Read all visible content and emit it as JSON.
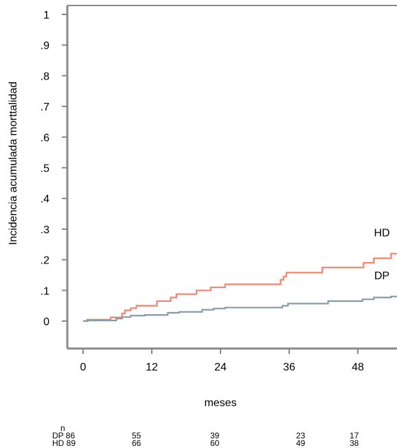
{
  "chart_data": {
    "type": "line",
    "xlabel": "meses",
    "ylabel": "Incidencia acumulada morttalidad",
    "xlim": [
      0,
      55
    ],
    "ylim": [
      0,
      1
    ],
    "x_ticks": [
      "0",
      "12",
      "24",
      "36",
      "48"
    ],
    "y_ticks": [
      "0",
      ".1",
      ".2",
      ".3",
      ".4",
      ".5",
      ".6",
      ".7",
      ".8",
      ".9",
      "1"
    ],
    "series": [
      {
        "name": "HD",
        "color": "#f4826f",
        "points": [
          [
            0,
            0
          ],
          [
            0.7,
            0
          ],
          [
            0.7,
            0.005
          ],
          [
            4.8,
            0.005
          ],
          [
            4.8,
            0.012
          ],
          [
            6.8,
            0.012
          ],
          [
            6.8,
            0.025
          ],
          [
            7.3,
            0.025
          ],
          [
            7.3,
            0.035
          ],
          [
            8.3,
            0.035
          ],
          [
            8.3,
            0.042
          ],
          [
            9.3,
            0.042
          ],
          [
            9.3,
            0.05
          ],
          [
            12.9,
            0.05
          ],
          [
            12.9,
            0.065
          ],
          [
            15.3,
            0.065
          ],
          [
            15.3,
            0.077
          ],
          [
            16.3,
            0.077
          ],
          [
            16.3,
            0.088
          ],
          [
            19.8,
            0.088
          ],
          [
            19.8,
            0.1
          ],
          [
            22.3,
            0.1
          ],
          [
            22.3,
            0.11
          ],
          [
            24.8,
            0.11
          ],
          [
            24.8,
            0.12
          ],
          [
            34.5,
            0.12
          ],
          [
            34.5,
            0.135
          ],
          [
            35.0,
            0.135
          ],
          [
            35.0,
            0.145
          ],
          [
            35.5,
            0.145
          ],
          [
            35.5,
            0.158
          ],
          [
            41.8,
            0.158
          ],
          [
            41.8,
            0.175
          ],
          [
            49,
            0.175
          ],
          [
            49,
            0.19
          ],
          [
            50.8,
            0.19
          ],
          [
            50.8,
            0.205
          ],
          [
            53.8,
            0.205
          ],
          [
            53.8,
            0.22
          ],
          [
            55,
            0.22
          ]
        ]
      },
      {
        "name": "DP",
        "color": "#8699a6",
        "points": [
          [
            0,
            0
          ],
          [
            0.8,
            0
          ],
          [
            0.8,
            0.002
          ],
          [
            5.8,
            0.002
          ],
          [
            5.8,
            0.008
          ],
          [
            6.8,
            0.008
          ],
          [
            6.8,
            0.013
          ],
          [
            8.3,
            0.013
          ],
          [
            8.3,
            0.018
          ],
          [
            10.8,
            0.018
          ],
          [
            10.8,
            0.02
          ],
          [
            14.8,
            0.02
          ],
          [
            14.8,
            0.027
          ],
          [
            16.8,
            0.027
          ],
          [
            16.8,
            0.03
          ],
          [
            20.8,
            0.03
          ],
          [
            20.8,
            0.037
          ],
          [
            22.8,
            0.037
          ],
          [
            22.8,
            0.041
          ],
          [
            24.8,
            0.041
          ],
          [
            24.8,
            0.044
          ],
          [
            34.8,
            0.044
          ],
          [
            34.8,
            0.05
          ],
          [
            35.8,
            0.05
          ],
          [
            35.8,
            0.057
          ],
          [
            42.8,
            0.057
          ],
          [
            42.8,
            0.065
          ],
          [
            48.8,
            0.065
          ],
          [
            48.8,
            0.071
          ],
          [
            50.8,
            0.071
          ],
          [
            50.8,
            0.077
          ],
          [
            53.8,
            0.077
          ],
          [
            53.8,
            0.08
          ],
          [
            55,
            0.08
          ]
        ]
      }
    ]
  },
  "risk_table": {
    "header": "n",
    "rows": [
      {
        "label": "DP 86",
        "values": [
          "55",
          "39",
          "23",
          "17"
        ]
      },
      {
        "label": "HD 89",
        "values": [
          "66",
          "60",
          "49",
          "38"
        ]
      }
    ]
  }
}
